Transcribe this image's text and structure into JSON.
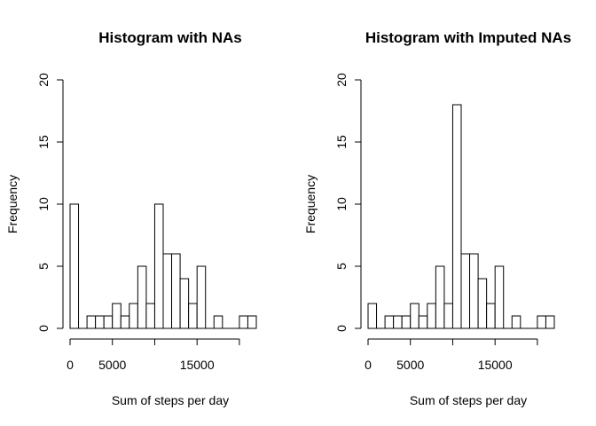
{
  "chart_data": [
    {
      "type": "bar",
      "title": "Histogram with NAs",
      "xlabel": "Sum of steps per day",
      "ylabel": "Frequency",
      "bin_width": 1000,
      "x_range": [
        0,
        22000
      ],
      "ylim": [
        0,
        20
      ],
      "y_ticks": [
        0,
        5,
        10,
        15,
        20
      ],
      "x_ticks": [
        0,
        5000,
        10000,
        15000,
        20000
      ],
      "x_tick_labels": [
        "0",
        "5000",
        "",
        "15000",
        ""
      ],
      "values": [
        10,
        0,
        1,
        1,
        1,
        2,
        1,
        2,
        5,
        2,
        10,
        6,
        6,
        4,
        2,
        5,
        0,
        1,
        0,
        0,
        1,
        1
      ],
      "grid": false,
      "legend": "none"
    },
    {
      "type": "bar",
      "title": "Histogram with Imputed NAs",
      "xlabel": "Sum of steps per day",
      "ylabel": "Frequency",
      "bin_width": 1000,
      "x_range": [
        0,
        22000
      ],
      "ylim": [
        0,
        20
      ],
      "y_ticks": [
        0,
        5,
        10,
        15,
        20
      ],
      "x_ticks": [
        0,
        5000,
        10000,
        15000,
        20000
      ],
      "x_tick_labels": [
        "0",
        "5000",
        "",
        "15000",
        ""
      ],
      "values": [
        2,
        0,
        1,
        1,
        1,
        2,
        1,
        2,
        5,
        2,
        18,
        6,
        6,
        4,
        2,
        5,
        0,
        1,
        0,
        0,
        1,
        1
      ],
      "grid": false,
      "legend": "none"
    }
  ]
}
